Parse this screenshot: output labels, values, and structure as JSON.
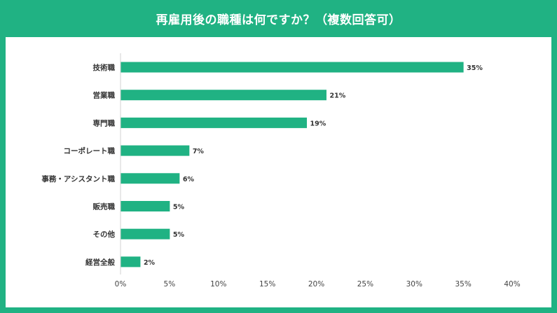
{
  "chart_data": {
    "type": "bar",
    "orientation": "horizontal",
    "title": "再雇用後の職種は何ですか？（複数回答可）",
    "categories": [
      "技術職",
      "営業職",
      "専門職",
      "コーポレート職",
      "事務・アシスタント職",
      "販売職",
      "その他",
      "経営全般"
    ],
    "values": [
      35,
      21,
      19,
      7,
      6,
      5,
      5,
      2
    ],
    "value_labels": [
      "35%",
      "21%",
      "19%",
      "7%",
      "6%",
      "5%",
      "5%",
      "2%"
    ],
    "xlim": [
      0,
      40
    ],
    "x_ticks": [
      0,
      5,
      10,
      15,
      20,
      25,
      30,
      35,
      40
    ],
    "x_tick_labels": [
      "0%",
      "5%",
      "10%",
      "15%",
      "20%",
      "25%",
      "30%",
      "35%",
      "40%"
    ],
    "xlabel": "",
    "ylabel": "",
    "grid": false,
    "bar_color": "#20b283",
    "background_color": "#20b283"
  }
}
